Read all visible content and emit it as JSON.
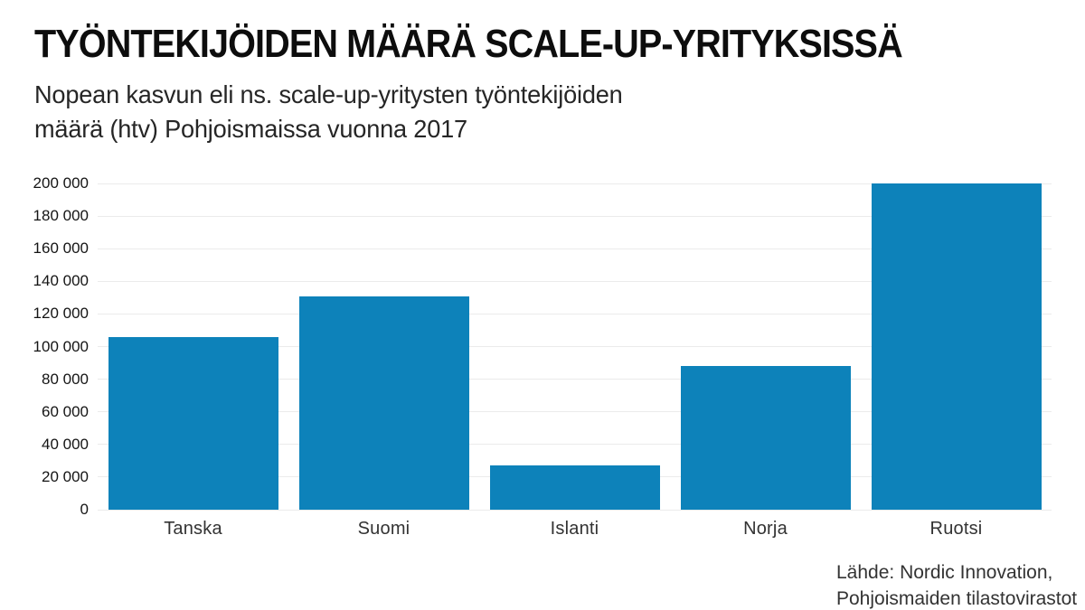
{
  "header": {
    "title": "TYÖNTEKIJÖIDEN MÄÄRÄ SCALE-UP-YRITYKSISSÄ",
    "subtitle_line1": "Nopean kasvun eli ns. scale-up-yritysten työntekijöiden",
    "subtitle_line2": "määrä (htv) Pohjoismaissa vuonna 2017"
  },
  "chart_data": {
    "type": "bar",
    "title": "TYÖNTEKIJÖIDEN MÄÄRÄ SCALE-UP-YRITYKSISSÄ",
    "subtitle": "Nopean kasvun eli ns. scale-up-yritysten työntekijöiden määrä (htv) Pohjoismaissa vuonna 2017",
    "categories": [
      "Tanska",
      "Suomi",
      "Islanti",
      "Norja",
      "Ruotsi"
    ],
    "values": [
      106000,
      131000,
      27000,
      88000,
      200000
    ],
    "xlabel": "",
    "ylabel": "",
    "ylim": [
      0,
      200000
    ],
    "ytick_values": [
      0,
      20000,
      40000,
      60000,
      80000,
      100000,
      120000,
      140000,
      160000,
      180000,
      200000
    ],
    "ytick_labels": [
      "0",
      "20 000",
      "40 000",
      "60 000",
      "80 000",
      "100 000",
      "120 000",
      "140 000",
      "160 000",
      "180 000",
      "200 000"
    ],
    "grid": true,
    "legend": false,
    "bar_color": "#0d82ba",
    "gridline_color": "#ebebeb"
  },
  "source": {
    "line1": "Lähde: Nordic Innovation,",
    "line2": "Pohjoismaiden tilastovirastot"
  }
}
